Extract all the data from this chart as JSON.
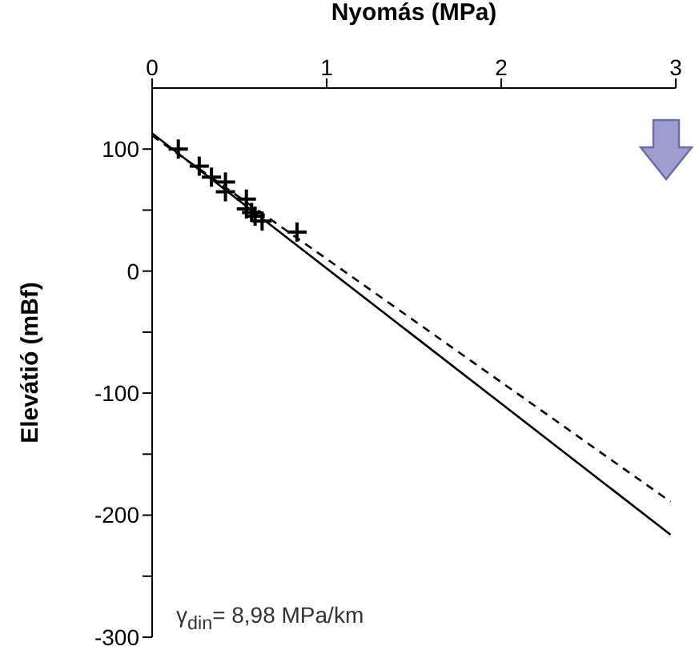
{
  "chart_data": {
    "type": "scatter",
    "xlabel": "Nyomás (MPa)",
    "ylabel": "Elevátió (mBf)",
    "xlim": [
      0,
      3
    ],
    "xticks": [
      0,
      1,
      2,
      3
    ],
    "ylim": [
      -300,
      150
    ],
    "yticks": [
      -300,
      {
        "value": -250,
        "label": null
      },
      -200,
      {
        "value": -150,
        "label": null
      },
      -100,
      {
        "value": -50,
        "label": null
      },
      0,
      {
        "value": 50,
        "label": null
      },
      100
    ],
    "annotations": [
      "γ$_{din}$= 8,98 MPa/km"
    ],
    "series": [
      {
        "color": "#000000",
        "marker": "cross",
        "x": [
          0.15,
          0.27,
          0.34,
          0.42,
          0.42,
          0.54,
          0.54,
          0.57,
          0.59,
          0.63,
          0.83
        ],
        "values": [
          100,
          86,
          77,
          73,
          65,
          59,
          51,
          48,
          45,
          41,
          32
        ]
      },
      {
        "type": "line",
        "color": "#000000",
        "line_style": "solid",
        "x": [
          0,
          2.97
        ],
        "values": [
          113,
          -216
        ]
      },
      {
        "type": "line",
        "color": "#000000",
        "line_style": "dashed",
        "x": [
          0,
          2.97
        ],
        "values": [
          111,
          -189
        ]
      }
    ]
  }
}
